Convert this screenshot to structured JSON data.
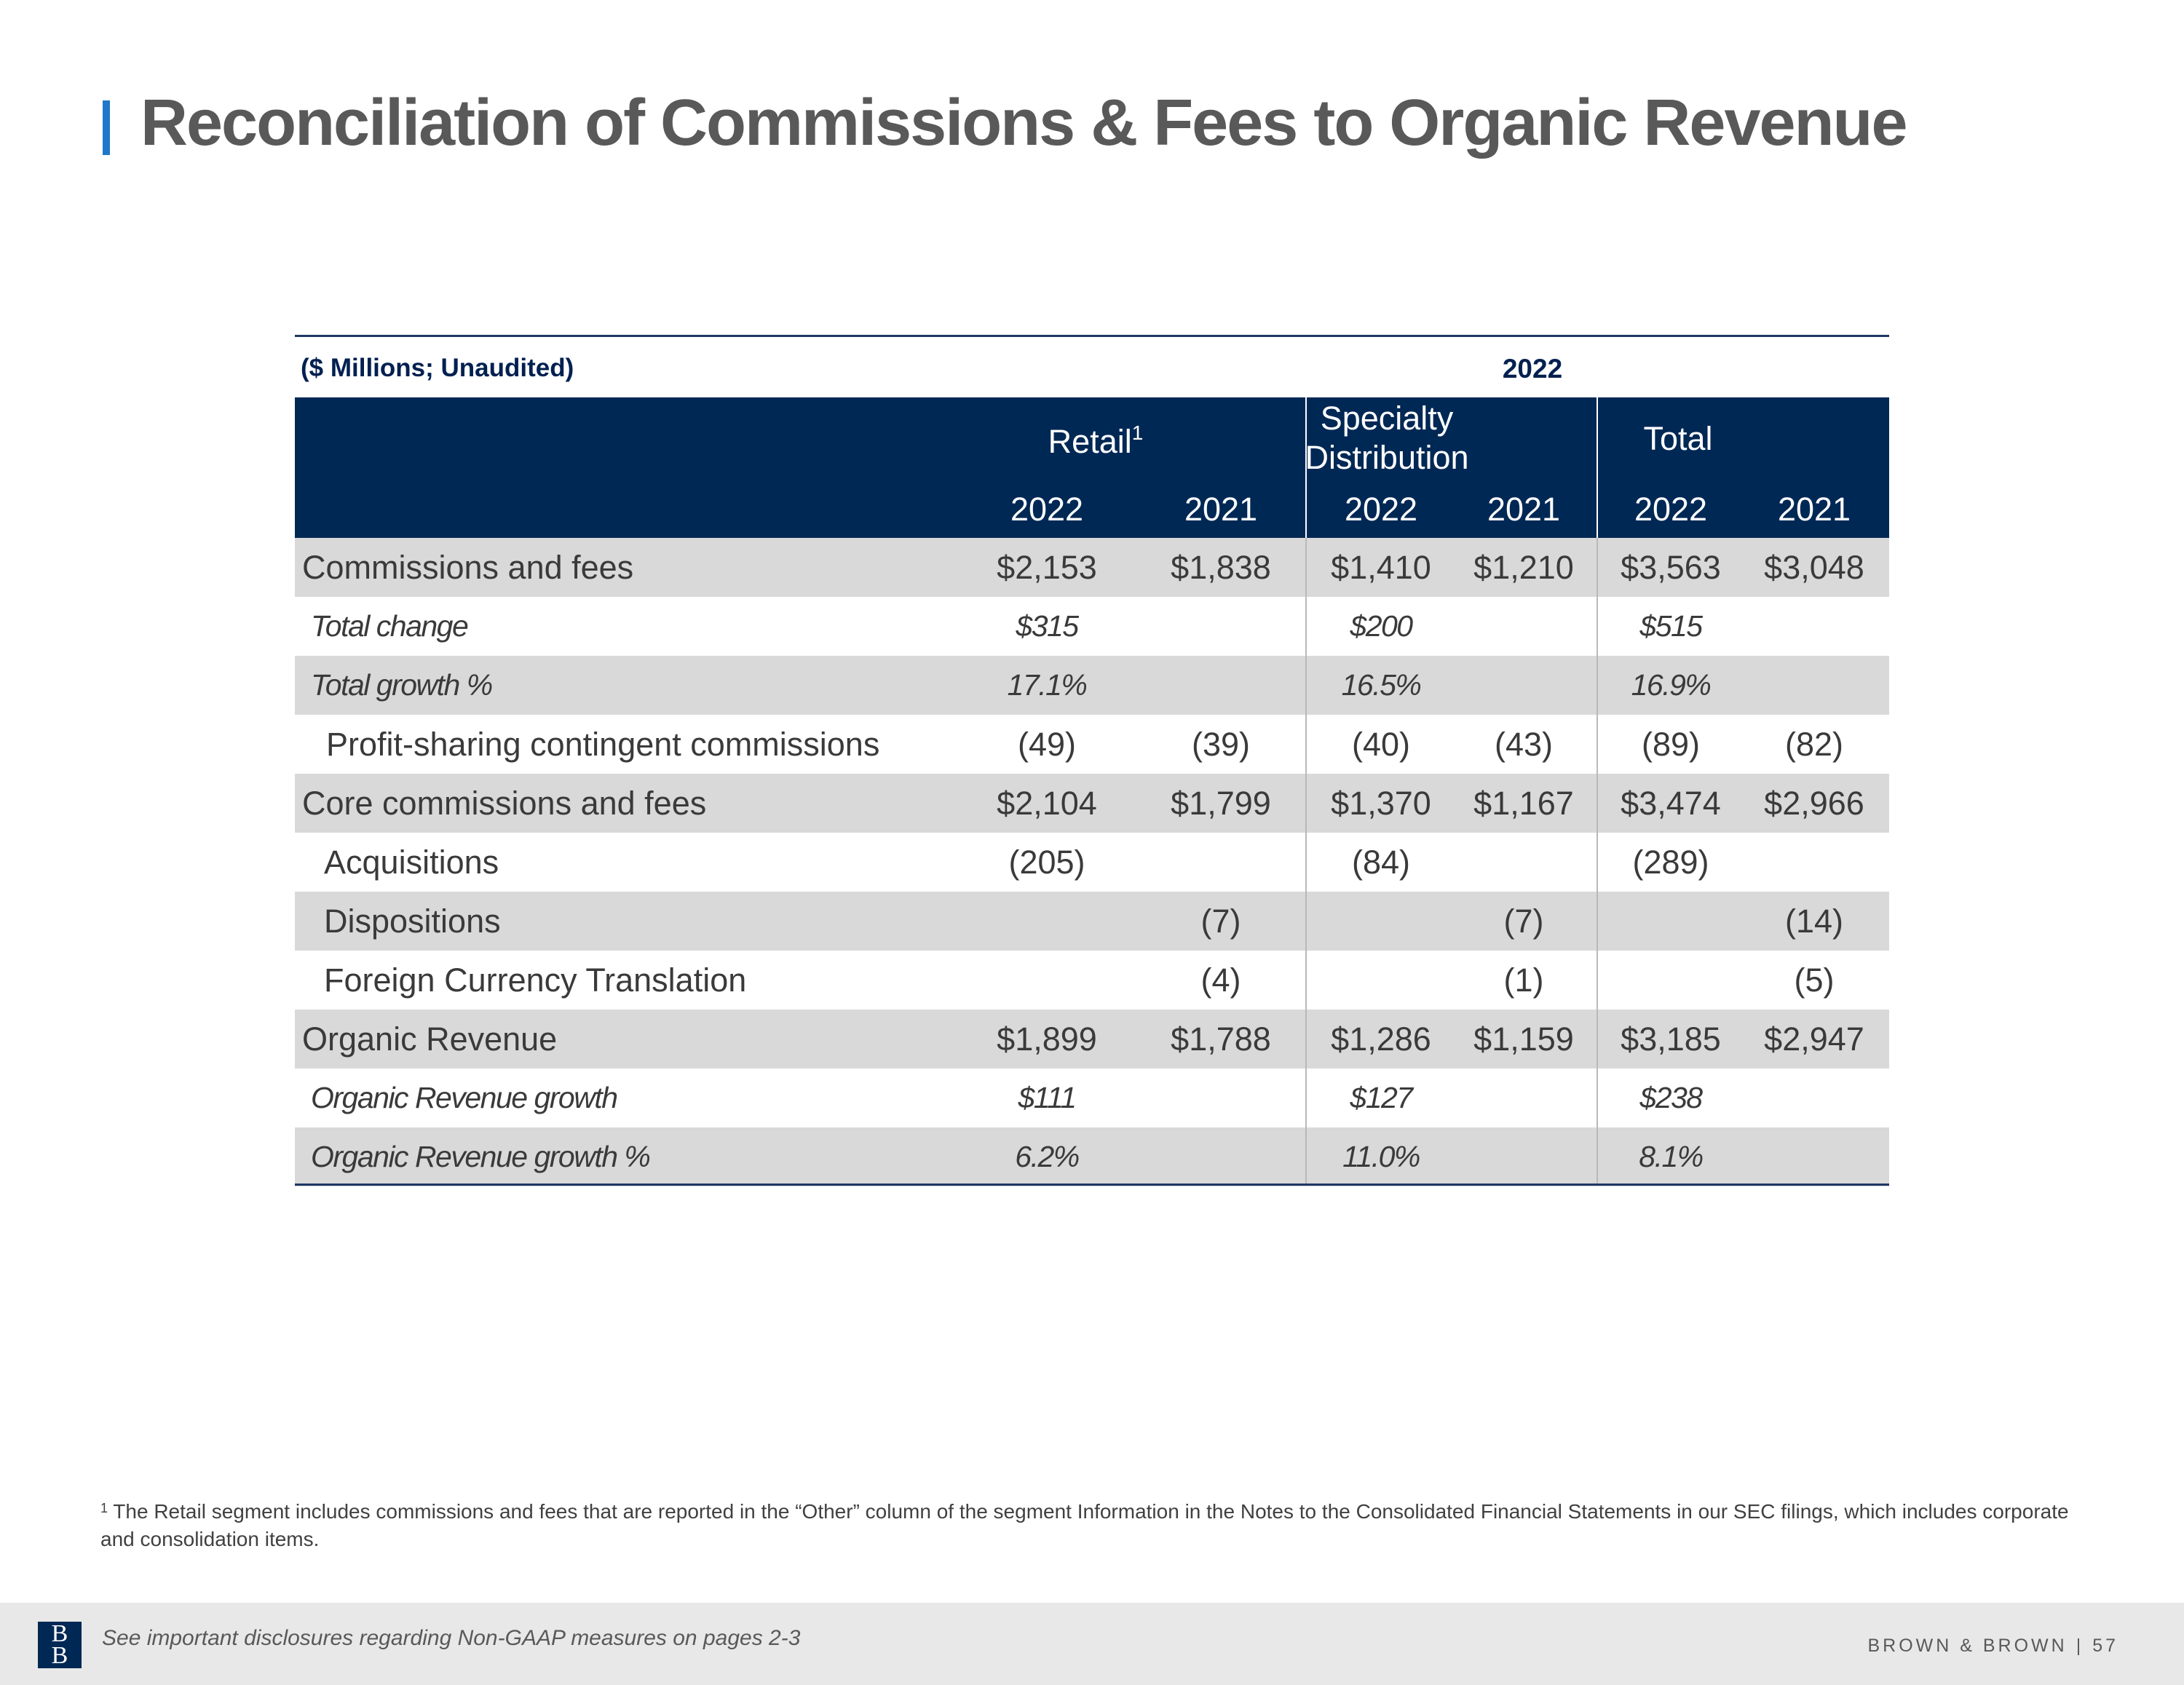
{
  "page": {
    "title": "Reconciliation of Commissions & Fees to Organic Revenue"
  },
  "table": {
    "units_label": "($ Millions; Unaudited)",
    "period_label": "2022",
    "segments": [
      {
        "name": "Retail",
        "superscript": "1"
      },
      {
        "name_line1": "Specialty",
        "name_line2": "Distribution"
      },
      {
        "name": "Total"
      }
    ],
    "years": [
      "2022",
      "2021",
      "2022",
      "2021",
      "2022",
      "2021"
    ],
    "rows": [
      {
        "label": "Commissions and fees",
        "values": [
          "$2,153",
          "$1,838",
          "$1,410",
          "$1,210",
          "$3,563",
          "$3,048"
        ]
      },
      {
        "label": "Total change",
        "values": [
          "$315",
          "",
          "$200",
          "",
          "$515",
          ""
        ]
      },
      {
        "label": "Total growth %",
        "values": [
          "17.1%",
          "",
          "16.5%",
          "",
          "16.9%",
          ""
        ]
      },
      {
        "label": "Profit-sharing contingent commissions",
        "values": [
          "(49)",
          "(39)",
          "(40)",
          "(43)",
          "(89)",
          "(82)"
        ]
      },
      {
        "label": "Core commissions and fees",
        "values": [
          "$2,104",
          "$1,799",
          "$1,370",
          "$1,167",
          "$3,474",
          "$2,966"
        ]
      },
      {
        "label": "Acquisitions",
        "values": [
          "(205)",
          "",
          "(84)",
          "",
          "(289)",
          ""
        ]
      },
      {
        "label": "Dispositions",
        "values": [
          "",
          "(7)",
          "",
          "(7)",
          "",
          "(14)"
        ]
      },
      {
        "label": "Foreign Currency Translation",
        "values": [
          "",
          "(4)",
          "",
          "(1)",
          "",
          "(5)"
        ]
      },
      {
        "label": "Organic Revenue",
        "values": [
          "$1,899",
          "$1,788",
          "$1,286",
          "$1,159",
          "$3,185",
          "$2,947"
        ]
      },
      {
        "label": "Organic Revenue growth",
        "values": [
          "$111",
          "",
          "$127",
          "",
          "$238",
          ""
        ]
      },
      {
        "label": "Organic Revenue growth %",
        "values": [
          "6.2%",
          "",
          "11.0%",
          "",
          "8.1%",
          ""
        ]
      }
    ]
  },
  "footnote": {
    "marker": "1",
    "text": "The Retail segment includes commissions and fees that are reported in the “Other” column of the segment Information in the Notes to the Consolidated Financial Statements in our SEC filings, which includes corporate and consolidation items."
  },
  "footer": {
    "logo_text_line1": "B",
    "logo_text_line2": "B",
    "disclosure": "See important disclosures regarding Non-GAAP measures on pages 2-3",
    "brand": "BROWN & BROWN",
    "separator": "|",
    "page_number": "57"
  }
}
